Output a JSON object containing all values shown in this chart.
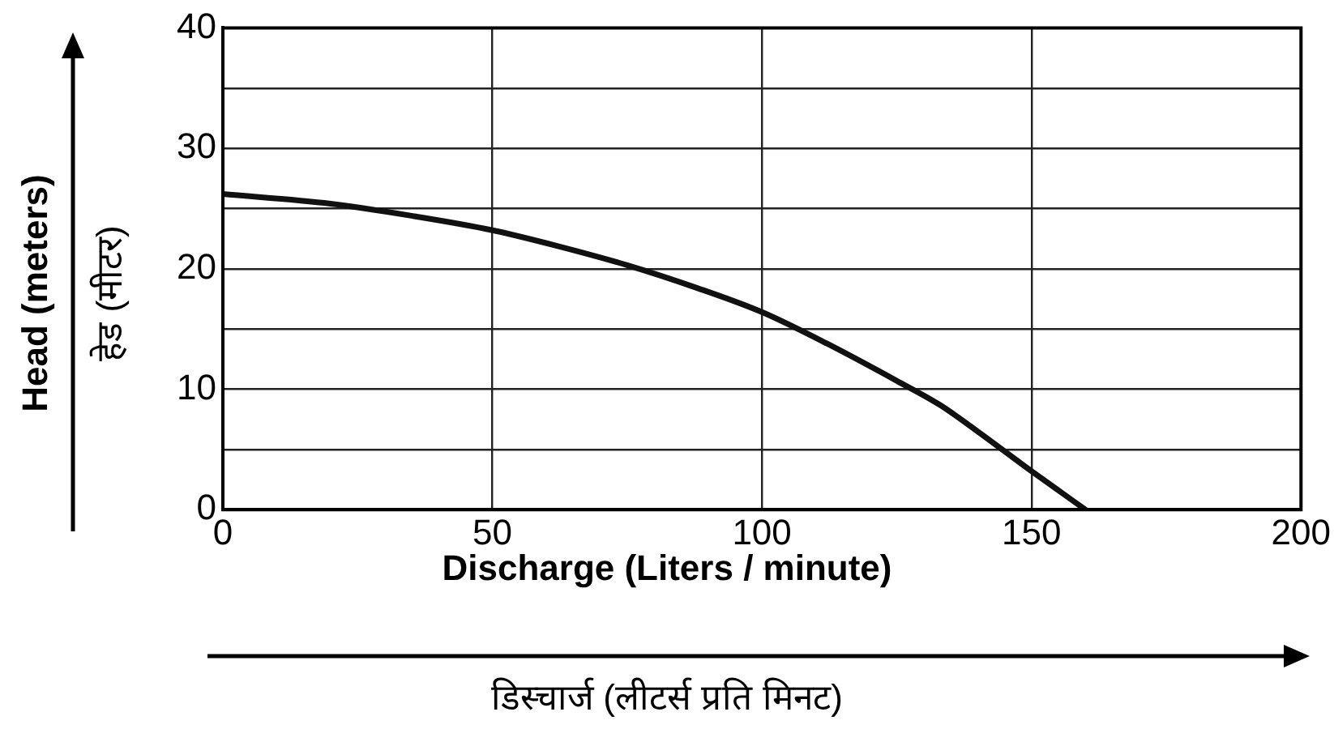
{
  "chart_data": {
    "type": "line",
    "xlabel": "Discharge (Liters / minute)\nडिस्चार्ज (लीटर्स प्रति मिनट)",
    "ylabel": "Head (meters)\nहेड (मीटर)",
    "x": [
      0,
      20,
      35,
      50,
      62,
      75,
      88,
      100,
      112,
      125,
      133,
      140,
      150,
      155,
      160
    ],
    "series": [
      {
        "color": "#111111",
        "values": [
          26.2,
          25.4,
          24.4,
          23.2,
          21.9,
          20.3,
          18.4,
          16.4,
          13.8,
          10.7,
          8.7,
          6.5,
          3.2,
          1.6,
          0
        ]
      }
    ],
    "xlim": [
      0,
      200
    ],
    "xticks": [
      0,
      50,
      100,
      150,
      200
    ],
    "ylim": [
      0,
      40
    ],
    "yticks": [
      0,
      {
        "value": 5,
        "label": null
      },
      10,
      {
        "value": 15,
        "label": null
      },
      20,
      {
        "value": 25,
        "label": null
      },
      30,
      {
        "value": 35,
        "label": null
      },
      40
    ],
    "grid": true,
    "marker": "none",
    "line_style": "solid",
    "legend": false
  }
}
